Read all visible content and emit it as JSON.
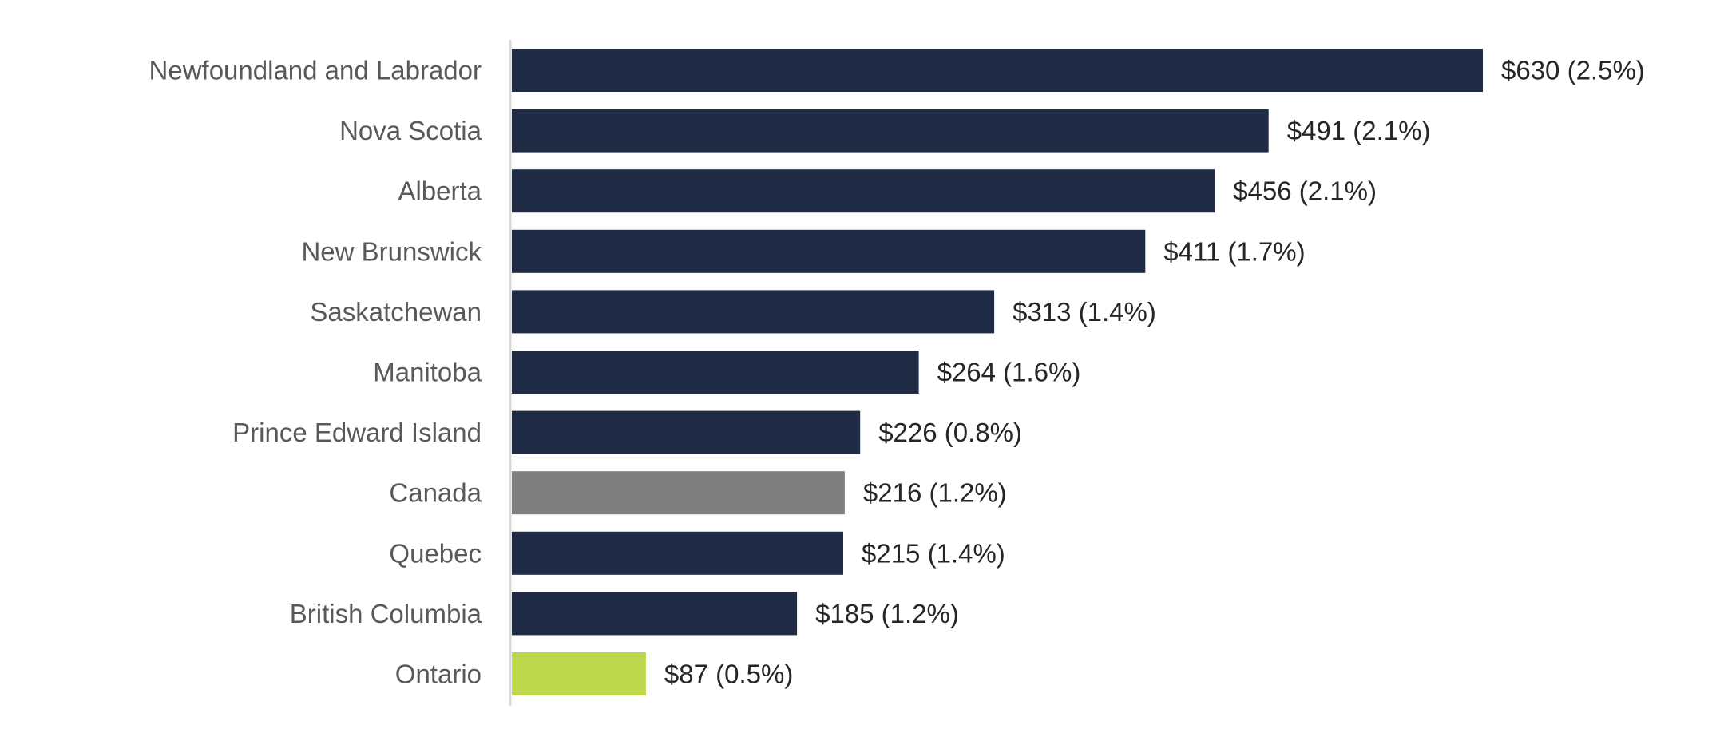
{
  "chart_data": {
    "type": "bar",
    "orientation": "horizontal",
    "categories": [
      "Newfoundland and Labrador",
      "Nova Scotia",
      "Alberta",
      "New Brunswick",
      "Saskatchewan",
      "Manitoba",
      "Prince Edward Island",
      "Canada",
      "Quebec",
      "British Columbia",
      "Ontario"
    ],
    "values": [
      630,
      491,
      456,
      411,
      313,
      264,
      226,
      216,
      215,
      185,
      87
    ],
    "data_labels": [
      "$630 (2.5%)",
      "$491 (2.1%)",
      "$456 (2.1%)",
      "$411 (1.7%)",
      "$313 (1.4%)",
      "$264 (1.6%)",
      "$226 (0.8%)",
      "$216 (1.2%)",
      "$215 (1.4%)",
      "$185 (1.2%)",
      "$87 (0.5%)"
    ],
    "bar_colors": [
      "#1f2a44",
      "#1f2a44",
      "#1f2a44",
      "#1f2a44",
      "#1f2a44",
      "#1f2a44",
      "#1f2a44",
      "#7f7f7f",
      "#1f2a44",
      "#1f2a44",
      "#bcd84a"
    ],
    "xlim": [
      0,
      630
    ],
    "title": "",
    "xlabel": "",
    "ylabel": "",
    "grid": false,
    "legend": "none"
  }
}
